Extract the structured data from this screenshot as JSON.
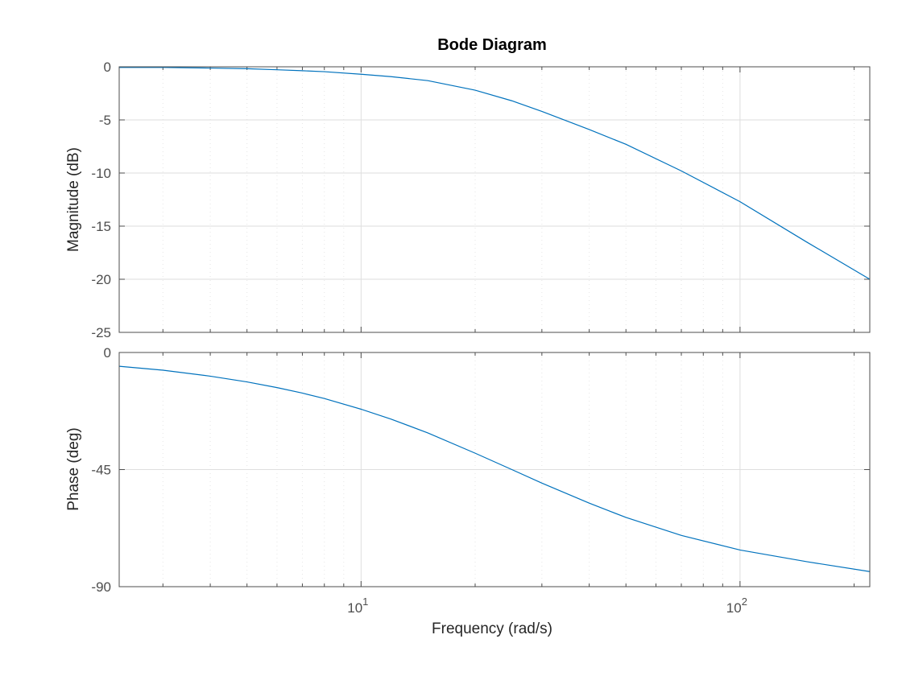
{
  "chart_data": [
    {
      "type": "line",
      "title": "Bode Diagram",
      "xlabel": "Frequency  (rad/s)",
      "ylabel": "Magnitude (dB)",
      "xscale": "log",
      "xlim": [
        2.3,
        220
      ],
      "ylim": [
        -25,
        0
      ],
      "yticks": [
        0,
        -5,
        -10,
        -15,
        -20,
        -25
      ],
      "ytick_labels": [
        "0",
        "-5",
        "-10",
        "-15",
        "-20",
        "-25"
      ],
      "grid": true,
      "color": "#0072bd",
      "series": [
        {
          "x": [
            2.3,
            3,
            4,
            5,
            6,
            7,
            8,
            10,
            12,
            15,
            20,
            25,
            30,
            40,
            50,
            70,
            100,
            150,
            220
          ],
          "y": [
            -0.06,
            -0.06,
            -0.12,
            -0.18,
            -0.28,
            -0.37,
            -0.46,
            -0.7,
            -0.93,
            -1.3,
            -2.2,
            -3.2,
            -4.2,
            -5.9,
            -7.3,
            -9.8,
            -12.7,
            -16.5,
            -20.0
          ]
        }
      ]
    },
    {
      "type": "line",
      "title": "",
      "xlabel": "Frequency  (rad/s)",
      "xtick_labels": [
        {
          "base": "10",
          "exp": "1"
        },
        {
          "base": "10",
          "exp": "2"
        }
      ],
      "ylabel": "Phase (deg)",
      "xscale": "log",
      "xlim": [
        2.3,
        220
      ],
      "ylim": [
        -90,
        0
      ],
      "yticks": [
        0,
        -45,
        -90
      ],
      "ytick_labels": [
        "0",
        "-45",
        "-90"
      ],
      "grid": true,
      "color": "#0072bd",
      "series": [
        {
          "x": [
            2.3,
            3,
            4,
            5,
            6,
            7,
            8,
            10,
            12,
            15,
            20,
            25,
            30,
            40,
            50,
            70,
            100,
            150,
            220
          ],
          "y": [
            -5.3,
            -6.8,
            -9.1,
            -11.3,
            -13.5,
            -15.6,
            -17.7,
            -21.8,
            -25.6,
            -30.9,
            -38.7,
            -45.0,
            -50.2,
            -57.9,
            -63.4,
            -70.3,
            -75.9,
            -80.4,
            -84.2
          ]
        }
      ]
    }
  ]
}
